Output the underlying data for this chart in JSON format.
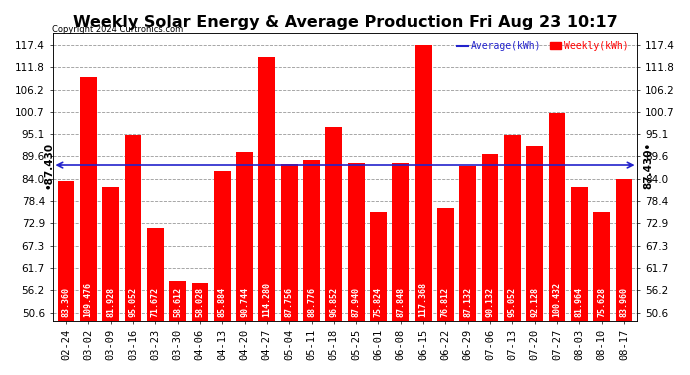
{
  "title": "Weekly Solar Energy & Average Production Fri Aug 23 10:17",
  "copyright": "Copyright 2024 Curtronics.com",
  "legend_avg": "Average(kWh)",
  "legend_weekly": "Weekly(kWh)",
  "average": 87.43,
  "categories": [
    "02-24",
    "03-02",
    "03-09",
    "03-16",
    "03-23",
    "03-30",
    "04-06",
    "04-13",
    "04-20",
    "04-27",
    "05-04",
    "05-11",
    "05-18",
    "05-25",
    "06-01",
    "06-08",
    "06-15",
    "06-22",
    "06-29",
    "07-06",
    "07-13",
    "07-20",
    "07-27",
    "08-03",
    "08-10",
    "08-17"
  ],
  "values": [
    83.36,
    109.476,
    81.928,
    95.052,
    71.672,
    58.612,
    58.028,
    85.884,
    90.744,
    114.28,
    87.756,
    88.776,
    96.852,
    87.94,
    75.824,
    87.848,
    117.368,
    76.812,
    87.132,
    90.132,
    95.052,
    92.128,
    100.432,
    81.964,
    75.628,
    83.96
  ],
  "bar_color": "#ff0000",
  "avg_line_color": "#2222cc",
  "background_color": "#ffffff",
  "grid_color": "#999999",
  "y_ticks": [
    50.6,
    56.2,
    61.7,
    67.3,
    72.9,
    78.4,
    84.0,
    89.6,
    95.1,
    100.7,
    106.2,
    111.8,
    117.4
  ],
  "ylim": [
    48.5,
    120.5
  ],
  "title_fontsize": 11.5,
  "tick_fontsize": 7.5,
  "bar_label_fontsize": 6.0,
  "avg_label_fontsize": 7.5
}
